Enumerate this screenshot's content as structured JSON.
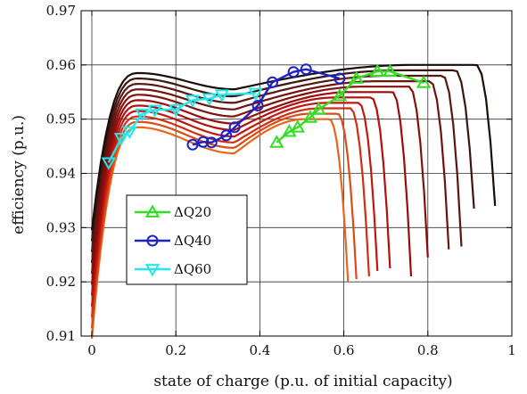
{
  "chart_data": {
    "type": "line",
    "xlabel": "state of charge (p.u. of initial capacity)",
    "ylabel": "efficiency (p.u.)",
    "xlim": [
      0,
      1
    ],
    "ylim": [
      0.91,
      0.97
    ],
    "xticks": [
      0,
      0.2,
      0.4,
      0.6,
      0.8,
      1
    ],
    "xtick_labels": [
      "0",
      "0.2",
      "0.4",
      "0.6",
      "0.8",
      "1"
    ],
    "yticks": [
      0.91,
      0.92,
      0.93,
      0.94,
      0.95,
      0.96,
      0.97
    ],
    "ytick_labels": [
      "0.91",
      "0.92",
      "0.93",
      "0.94",
      "0.95",
      "0.96",
      "0.97"
    ],
    "grid": true,
    "legend_position": "lower-left",
    "curves": [
      {
        "color": "#e8641a",
        "end": 0.61,
        "peak": 0.9485,
        "trough": 0.9437,
        "drop": 0.92
      },
      {
        "color": "#dc4a16",
        "end": 0.63,
        "peak": 0.9495,
        "trough": 0.9447,
        "drop": 0.9205
      },
      {
        "color": "#d02e12",
        "end": 0.66,
        "peak": 0.9505,
        "trough": 0.9457,
        "drop": 0.921
      },
      {
        "color": "#c01810",
        "end": 0.68,
        "peak": 0.9515,
        "trough": 0.9468,
        "drop": 0.922
      },
      {
        "color": "#b0100e",
        "end": 0.71,
        "peak": 0.9525,
        "trough": 0.948,
        "drop": 0.9225
      },
      {
        "color": "#9a0c0c",
        "end": 0.76,
        "peak": 0.9535,
        "trough": 0.9492,
        "drop": 0.921
      },
      {
        "color": "#84100c",
        "end": 0.8,
        "peak": 0.9545,
        "trough": 0.9505,
        "drop": 0.9245
      },
      {
        "color": "#6e120e",
        "end": 0.85,
        "peak": 0.9555,
        "trough": 0.9518,
        "drop": 0.926
      },
      {
        "color": "#5a1610",
        "end": 0.88,
        "peak": 0.9565,
        "trough": 0.953,
        "drop": 0.9265
      },
      {
        "color": "#3c1410",
        "end": 0.91,
        "peak": 0.9575,
        "trough": 0.9542,
        "drop": 0.9335
      },
      {
        "color": "#1a0c08",
        "end": 0.96,
        "peak": 0.9585,
        "trough": 0.9555,
        "drop": 0.934
      }
    ],
    "series": [
      {
        "name": "ΔQ20",
        "color": "#33dd22",
        "marker": "triangle-up",
        "x": [
          0.44,
          0.47,
          0.49,
          0.52,
          0.54,
          0.59,
          0.63,
          0.68,
          0.71,
          0.79
        ],
        "y": [
          0.9457,
          0.9477,
          0.9485,
          0.9503,
          0.9518,
          0.9543,
          0.9575,
          0.9588,
          0.9588,
          0.9567
        ]
      },
      {
        "name": "ΔQ40",
        "color": "#1c22c8",
        "marker": "circle",
        "x": [
          0.24,
          0.265,
          0.285,
          0.32,
          0.34,
          0.395,
          0.43,
          0.48,
          0.51,
          0.59
        ],
        "y": [
          0.9453,
          0.9458,
          0.9457,
          0.947,
          0.9485,
          0.9525,
          0.9568,
          0.9587,
          0.9592,
          0.9575
        ]
      },
      {
        "name": "ΔQ60",
        "color": "#22e8ee",
        "marker": "triangle-down",
        "x": [
          0.04,
          0.07,
          0.09,
          0.12,
          0.15,
          0.2,
          0.24,
          0.28,
          0.31,
          0.39
        ],
        "y": [
          0.942,
          0.9465,
          0.9477,
          0.951,
          0.9517,
          0.9518,
          0.9535,
          0.9538,
          0.9545,
          0.9548
        ]
      }
    ]
  }
}
